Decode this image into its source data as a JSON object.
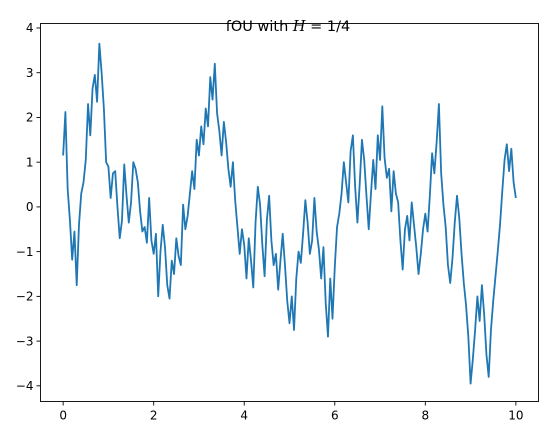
{
  "chart_data": {
    "type": "line",
    "title": "fOU with H = 1/4",
    "title_parts": {
      "prefix": "fOU with ",
      "variable": "H",
      "suffix": " = 1/4"
    },
    "xlabel": "",
    "ylabel": "",
    "xlim": [
      -0.5,
      10.5
    ],
    "ylim": [
      -4.35,
      4.1
    ],
    "xticks": [
      0,
      2,
      4,
      6,
      8,
      10
    ],
    "xtick_labels": [
      "0",
      "2",
      "4",
      "6",
      "8",
      "10"
    ],
    "yticks": [
      -4,
      -3,
      -2,
      -1,
      0,
      1,
      2,
      3,
      4
    ],
    "ytick_labels": [
      "−4",
      "−3",
      "−2",
      "−1",
      "0",
      "1",
      "2",
      "3",
      "4"
    ],
    "grid": false,
    "legend": "none",
    "colors": {
      "line": "#1f77b4"
    },
    "series": [
      {
        "x": [
          0.0,
          0.05,
          0.1,
          0.15,
          0.2,
          0.25,
          0.3,
          0.35,
          0.4,
          0.45,
          0.5,
          0.55,
          0.6,
          0.65,
          0.7,
          0.75,
          0.8,
          0.85,
          0.9,
          0.95,
          1.0,
          1.05,
          1.1,
          1.15,
          1.2,
          1.25,
          1.3,
          1.35,
          1.4,
          1.45,
          1.5,
          1.55,
          1.6,
          1.65,
          1.7,
          1.75,
          1.8,
          1.85,
          1.9,
          1.95,
          2.0,
          2.05,
          2.1,
          2.15,
          2.2,
          2.25,
          2.3,
          2.35,
          2.4,
          2.45,
          2.5,
          2.55,
          2.6,
          2.65,
          2.7,
          2.75,
          2.8,
          2.85,
          2.9,
          2.95,
          3.0,
          3.05,
          3.1,
          3.15,
          3.2,
          3.25,
          3.3,
          3.35,
          3.4,
          3.45,
          3.5,
          3.55,
          3.6,
          3.65,
          3.7,
          3.75,
          3.8,
          3.85,
          3.9,
          3.95,
          4.0,
          4.05,
          4.1,
          4.15,
          4.2,
          4.25,
          4.3,
          4.35,
          4.4,
          4.45,
          4.5,
          4.55,
          4.6,
          4.65,
          4.7,
          4.75,
          4.8,
          4.85,
          4.9,
          4.95,
          5.0,
          5.05,
          5.1,
          5.15,
          5.2,
          5.25,
          5.3,
          5.35,
          5.4,
          5.45,
          5.5,
          5.55,
          5.6,
          5.65,
          5.7,
          5.75,
          5.8,
          5.85,
          5.9,
          5.95,
          6.0,
          6.05,
          6.1,
          6.15,
          6.2,
          6.25,
          6.3,
          6.35,
          6.4,
          6.45,
          6.5,
          6.55,
          6.6,
          6.65,
          6.7,
          6.75,
          6.8,
          6.85,
          6.9,
          6.95,
          7.0,
          7.05,
          7.1,
          7.15,
          7.2,
          7.25,
          7.3,
          7.35,
          7.4,
          7.45,
          7.5,
          7.55,
          7.6,
          7.65,
          7.7,
          7.75,
          7.8,
          7.85,
          7.9,
          7.95,
          8.0,
          8.05,
          8.1,
          8.15,
          8.2,
          8.25,
          8.3,
          8.35,
          8.4,
          8.45,
          8.5,
          8.55,
          8.6,
          8.65,
          8.7,
          8.75,
          8.8,
          8.85,
          8.9,
          8.95,
          9.0,
          9.05,
          9.1,
          9.15,
          9.2,
          9.25,
          9.3,
          9.35,
          9.4,
          9.45,
          9.5,
          9.55,
          9.6,
          9.65,
          9.7,
          9.75,
          9.8,
          9.85,
          9.9,
          9.95,
          10.0
        ],
        "y": [
          1.15,
          2.12,
          0.4,
          -0.3,
          -1.18,
          -0.55,
          -1.75,
          -0.4,
          0.3,
          0.55,
          1.05,
          2.3,
          1.6,
          2.65,
          2.95,
          2.35,
          3.65,
          3.0,
          2.2,
          1.0,
          0.9,
          0.2,
          0.75,
          0.8,
          0.0,
          -0.7,
          -0.3,
          0.95,
          0.25,
          -0.35,
          0.1,
          1.0,
          0.85,
          0.55,
          -0.1,
          -0.55,
          -0.45,
          -0.8,
          0.2,
          -0.75,
          -1.05,
          -0.6,
          -2.0,
          -1.0,
          -0.4,
          -0.9,
          -1.75,
          -2.05,
          -1.2,
          -1.5,
          -0.7,
          -1.1,
          -1.3,
          0.05,
          -0.5,
          -0.2,
          0.3,
          0.8,
          0.4,
          1.5,
          1.15,
          1.8,
          1.4,
          2.2,
          1.8,
          2.9,
          2.4,
          3.2,
          2.1,
          1.7,
          1.15,
          1.9,
          1.45,
          0.85,
          0.45,
          1.0,
          0.15,
          -0.45,
          -1.05,
          -0.5,
          -0.85,
          -1.6,
          -0.7,
          -1.2,
          -1.8,
          -0.35,
          0.45,
          0.05,
          -0.85,
          -1.55,
          -0.3,
          0.25,
          -0.75,
          -1.3,
          -1.05,
          -1.85,
          -1.2,
          -0.6,
          -1.3,
          -2.1,
          -2.6,
          -2.0,
          -2.75,
          -1.6,
          -1.0,
          -1.25,
          -0.6,
          0.15,
          -0.35,
          -1.05,
          -0.75,
          0.2,
          -0.55,
          -0.95,
          -1.6,
          -0.9,
          -2.15,
          -2.9,
          -1.6,
          -2.5,
          -1.35,
          -0.45,
          -0.15,
          0.3,
          1.0,
          0.55,
          0.1,
          1.25,
          1.6,
          0.45,
          -0.35,
          0.5,
          1.5,
          1.05,
          0.25,
          -0.5,
          0.3,
          1.05,
          0.4,
          1.6,
          1.05,
          2.25,
          1.1,
          0.65,
          0.85,
          -0.1,
          0.8,
          0.3,
          0.1,
          -0.75,
          -1.4,
          -0.5,
          -0.2,
          -0.75,
          0.1,
          -0.4,
          -0.9,
          -1.5,
          -1.05,
          -0.5,
          -0.15,
          -0.55,
          0.25,
          1.2,
          0.75,
          1.45,
          2.3,
          0.75,
          0.05,
          -0.45,
          -1.3,
          -1.7,
          -1.15,
          -0.35,
          0.25,
          -0.25,
          -1.05,
          -1.7,
          -2.2,
          -2.9,
          -3.95,
          -3.4,
          -2.75,
          -2.0,
          -2.55,
          -1.75,
          -2.4,
          -3.3,
          -3.8,
          -2.75,
          -2.1,
          -1.55,
          -1.0,
          -0.4,
          0.35,
          1.05,
          1.4,
          0.8,
          1.3,
          0.55,
          0.2
        ]
      }
    ]
  }
}
